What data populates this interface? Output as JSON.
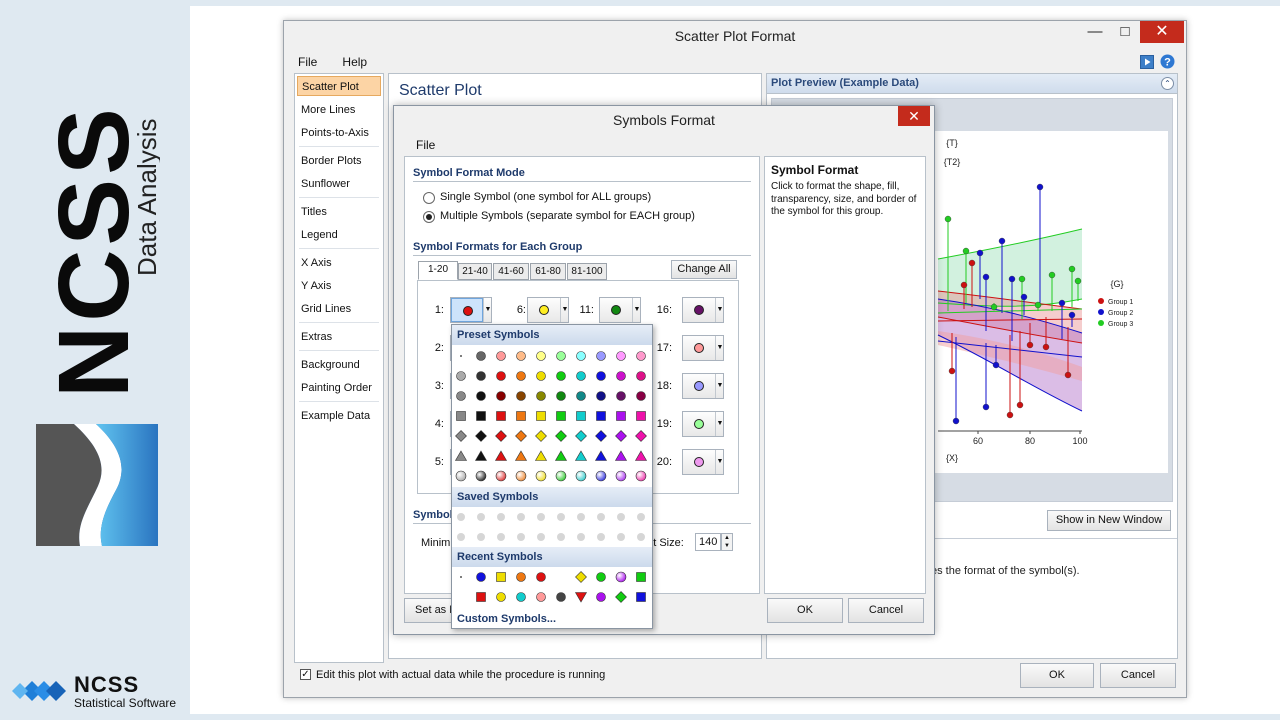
{
  "branding": {
    "big_text": "NCSS",
    "sub_text": "Data Analysis",
    "logo_name": "NCSS",
    "logo_sub": "Statistical Software"
  },
  "main_window": {
    "title": "Scatter Plot Format",
    "menu": [
      "File",
      "Help"
    ],
    "nav_items": [
      "Scatter Plot",
      "More Lines",
      "Points-to-Axis",
      "Border Plots",
      "Sunflower",
      "Titles",
      "Legend",
      "X Axis",
      "Y Axis",
      "Grid Lines",
      "Extras",
      "Background",
      "Painting Order",
      "Example Data"
    ],
    "panel_title": "Scatter Plot",
    "preview_title": "Plot Preview (Example Data)",
    "show_new_window": "Show in New Window",
    "description_tail": "es the format of the symbol(s).",
    "edit_checkbox_label": "Edit this plot with actual data while the procedure is running",
    "edit_checked": true,
    "ok": "OK",
    "cancel": "Cancel"
  },
  "plot_preview": {
    "labels": {
      "t": "{T}",
      "t2": "{T2}",
      "g": "{G}",
      "x": "{X}"
    },
    "x_ticks": [
      "60",
      "80",
      "100"
    ],
    "legend": [
      {
        "name": "Group 1",
        "color": "#cc1111"
      },
      {
        "name": "Group 2",
        "color": "#1111cc"
      },
      {
        "name": "Group 3",
        "color": "#22cc22"
      }
    ]
  },
  "symbols_dialog": {
    "title": "Symbols Format",
    "menu_file": "File",
    "mode_section": "Symbol Format Mode",
    "mode_single": "Single Symbol (one symbol for ALL groups)",
    "mode_multiple": "Multiple Symbols (separate symbol for EACH group)",
    "selected_mode": "multiple",
    "groups_section": "Symbol Formats for Each Group",
    "tabs": [
      "1-20",
      "21-40",
      "41-60",
      "61-80",
      "81-100"
    ],
    "selected_tab": "1-20",
    "change_all": "Change All",
    "rows": [
      {
        "n": "1:",
        "color": "#dd1111"
      },
      {
        "n": "2:",
        "color": "#1111cc"
      },
      {
        "n": "3:",
        "color": "#22bb22"
      },
      {
        "n": "4:",
        "color": "#ee8822"
      },
      {
        "n": "5:",
        "color": "#999999"
      },
      {
        "n": "6:",
        "color": "#ffee22"
      },
      {
        "n": "11:",
        "color": "#118811"
      },
      {
        "n": "16:",
        "color": "#661166"
      },
      {
        "n": "17:",
        "color": "#ff9999"
      },
      {
        "n": "18:",
        "color": "#9999ff"
      },
      {
        "n": "19:",
        "color": "#99ff99"
      },
      {
        "n": "20:",
        "color": "#ee99ee"
      }
    ],
    "size_section": "Symbol",
    "min_label": "Minim",
    "size_label": "ent Size:",
    "size_value": "140",
    "set_default": "Set as D",
    "help_title": "Symbol Format",
    "help_text": "Click to format the shape, fill, transparency, size, and border of the symbol for this group.",
    "ok": "OK",
    "cancel": "Cancel"
  },
  "symbol_popup": {
    "preset_title": "Preset Symbols",
    "saved_title": "Saved Symbols",
    "recent_title": "Recent Symbols",
    "custom_link": "Custom Symbols..."
  }
}
